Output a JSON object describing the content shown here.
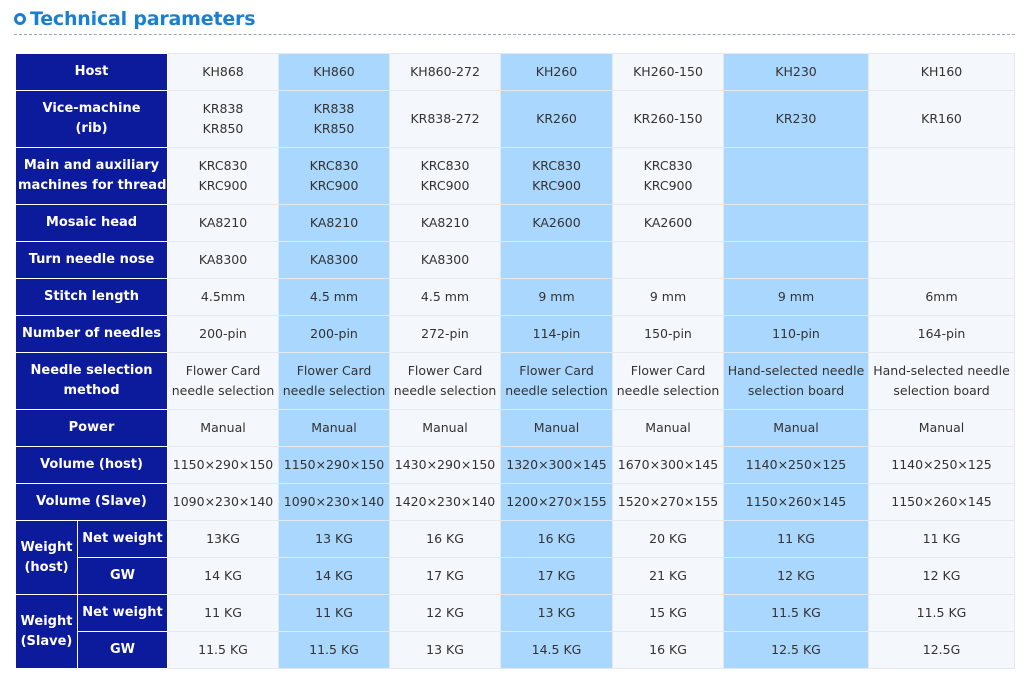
{
  "heading": {
    "icon": "circle-arrow-icon",
    "title": "Technical parameters",
    "color": "#1a7fd0"
  },
  "table": {
    "header_color": "#0c1a9c",
    "highlight_color": "#a9d7fd",
    "columns": [
      "KH868",
      "KH860",
      "KH860-272",
      "KH260",
      "KH260-150",
      "KH230",
      "KH160"
    ],
    "rows": [
      {
        "label": "Host",
        "cells": [
          [
            "KH868"
          ],
          [
            "KH860"
          ],
          [
            "KH860-272"
          ],
          [
            "KH260"
          ],
          [
            "KH260-150"
          ],
          [
            "KH230"
          ],
          [
            "KH160"
          ]
        ]
      },
      {
        "label_lines": [
          "Vice-machine",
          "(rib)"
        ],
        "cells": [
          [
            "KR838",
            "KR850"
          ],
          [
            "KR838",
            "KR850"
          ],
          [
            "KR838-272"
          ],
          [
            "KR260"
          ],
          [
            "KR260-150"
          ],
          [
            "KR230"
          ],
          [
            "KR160"
          ]
        ]
      },
      {
        "label_lines": [
          "Main and auxiliary",
          "machines for thread"
        ],
        "cells": [
          [
            "KRC830",
            "KRC900"
          ],
          [
            "KRC830",
            "KRC900"
          ],
          [
            "KRC830",
            "KRC900"
          ],
          [
            "KRC830",
            "KRC900"
          ],
          [
            "KRC830",
            "KRC900"
          ],
          [],
          []
        ]
      },
      {
        "label": "Mosaic head",
        "cells": [
          [
            "KA8210"
          ],
          [
            "KA8210"
          ],
          [
            "KA8210"
          ],
          [
            "KA2600"
          ],
          [
            "KA2600"
          ],
          [],
          []
        ]
      },
      {
        "label": "Turn needle nose",
        "cells": [
          [
            "KA8300"
          ],
          [
            "KA8300"
          ],
          [
            "KA8300"
          ],
          [],
          [],
          [],
          []
        ]
      },
      {
        "label": "Stitch length",
        "cells": [
          [
            "4.5mm"
          ],
          [
            "4.5 mm"
          ],
          [
            "4.5 mm"
          ],
          [
            "9 mm"
          ],
          [
            "9 mm"
          ],
          [
            "9 mm"
          ],
          [
            "6mm"
          ]
        ]
      },
      {
        "label": "Number of needles",
        "cells": [
          [
            "200-pin"
          ],
          [
            "200-pin"
          ],
          [
            "272-pin"
          ],
          [
            "114-pin"
          ],
          [
            "150-pin"
          ],
          [
            "110-pin"
          ],
          [
            "164-pin"
          ]
        ]
      },
      {
        "label_lines": [
          "Needle selection",
          "method"
        ],
        "cells": [
          [
            "Flower Card",
            "needle selection"
          ],
          [
            "Flower Card",
            "needle selection"
          ],
          [
            "Flower Card",
            "needle selection"
          ],
          [
            "Flower Card",
            "needle selection"
          ],
          [
            "Flower Card",
            "needle selection"
          ],
          [
            "Hand-selected needle",
            "selection board"
          ],
          [
            "Hand-selected needle",
            "selection board"
          ]
        ]
      },
      {
        "label": "Power",
        "cells": [
          [
            "Manual"
          ],
          [
            "Manual"
          ],
          [
            "Manual"
          ],
          [
            "Manual"
          ],
          [
            "Manual"
          ],
          [
            "Manual"
          ],
          [
            "Manual"
          ]
        ]
      },
      {
        "label": "Volume (host)",
        "cells": [
          [
            "1150×290×150"
          ],
          [
            "1150×290×150"
          ],
          [
            "1430×290×150"
          ],
          [
            "1320×300×145"
          ],
          [
            "1670×300×145"
          ],
          [
            "1140×250×125"
          ],
          [
            "1140×250×125"
          ]
        ]
      },
      {
        "label": "Volume (Slave)",
        "cells": [
          [
            "1090×230×140"
          ],
          [
            "1090×230×140"
          ],
          [
            "1420×230×140"
          ],
          [
            "1200×270×155"
          ],
          [
            "1520×270×155"
          ],
          [
            "1150×260×145"
          ],
          [
            "1150×260×145"
          ]
        ]
      }
    ],
    "weight_groups": [
      {
        "group_lines": [
          "Weight",
          "(host)"
        ],
        "rows": [
          {
            "label": "Net weight",
            "cells": [
              "13KG",
              "13 KG",
              "16 KG",
              "16 KG",
              "20 KG",
              "11 KG",
              "11 KG"
            ]
          },
          {
            "label": "GW",
            "cells": [
              "14 KG",
              "14 KG",
              "17 KG",
              "17 KG",
              "21 KG",
              "12 KG",
              "12 KG"
            ]
          }
        ]
      },
      {
        "group_lines": [
          "Weight",
          "(Slave)"
        ],
        "rows": [
          {
            "label": "Net weight",
            "cells": [
              "11 KG",
              "11 KG",
              "12 KG",
              "13 KG",
              "15 KG",
              "11.5 KG",
              "11.5 KG"
            ]
          },
          {
            "label": "GW",
            "cells": [
              "11.5 KG",
              "11.5 KG",
              "13 KG",
              "14.5 KG",
              "16 KG",
              "12.5 KG",
              "12.5G"
            ]
          }
        ]
      }
    ]
  }
}
